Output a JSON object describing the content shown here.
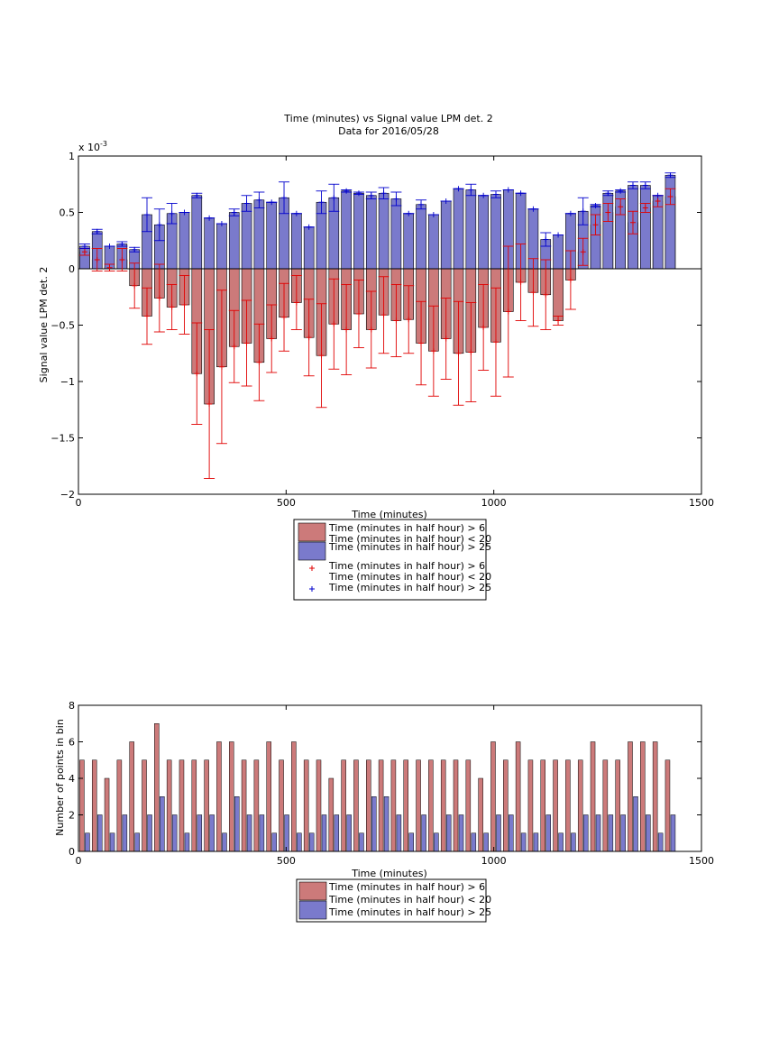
{
  "colors": {
    "red_fill": "#cc7a7a",
    "blue_fill": "#7a7acc",
    "red_err": "#e00000",
    "blue_err": "#0000cc",
    "edge": "#000000"
  },
  "chart_data": [
    {
      "type": "bar",
      "title": "Time (minutes) vs Signal value LPM det. 2",
      "subtitle": "Data for 2016/05/28",
      "xlabel": "Time (minutes)",
      "ylabel": "Signal value LPM det. 2",
      "exponent_label": "x 10",
      "exponent_power": "-3",
      "xlim": [
        0,
        1500
      ],
      "ylim": [
        -2,
        1
      ],
      "scale": 0.001,
      "xticks": [
        "0",
        "500",
        "1000",
        "1500"
      ],
      "yticks": [
        "1",
        "0.5",
        "0",
        "−0.5",
        "−1",
        "−1.5",
        "−2"
      ],
      "x": [
        15,
        45,
        75,
        105,
        135,
        165,
        195,
        225,
        255,
        285,
        315,
        345,
        375,
        405,
        435,
        465,
        495,
        525,
        555,
        585,
        615,
        645,
        675,
        705,
        735,
        765,
        795,
        825,
        855,
        885,
        915,
        945,
        975,
        1005,
        1035,
        1065,
        1095,
        1125,
        1155,
        1185,
        1215,
        1245,
        1275,
        1305,
        1335,
        1365,
        1395,
        1425
      ],
      "series": [
        {
          "name": "Time (minutes in half hour) > 6\nTime (minutes in half hour) < 20",
          "kind": "red",
          "values": [
            0.15,
            0.08,
            0.01,
            0.08,
            -0.15,
            -0.42,
            -0.26,
            -0.34,
            -0.32,
            -0.93,
            -1.2,
            -0.87,
            -0.69,
            -0.66,
            -0.83,
            -0.62,
            -0.43,
            -0.3,
            -0.61,
            -0.77,
            -0.49,
            -0.54,
            -0.4,
            -0.54,
            -0.41,
            -0.46,
            -0.45,
            -0.66,
            -0.73,
            -0.62,
            -0.75,
            -0.74,
            -0.52,
            -0.65,
            -0.38,
            -0.12,
            -0.21,
            -0.23,
            -0.46,
            -0.1,
            0.15,
            0.39,
            0.5,
            0.55,
            0.41,
            0.54,
            0.6,
            0.64
          ],
          "err": [
            0.03,
            0.1,
            0.03,
            0.1,
            0.2,
            0.25,
            0.3,
            0.2,
            0.26,
            0.45,
            0.66,
            0.68,
            0.32,
            0.38,
            0.34,
            0.3,
            0.3,
            0.24,
            0.34,
            0.46,
            0.4,
            0.4,
            0.3,
            0.34,
            0.34,
            0.32,
            0.3,
            0.37,
            0.4,
            0.36,
            0.46,
            0.44,
            0.38,
            0.48,
            0.58,
            0.34,
            0.3,
            0.31,
            0.04,
            0.26,
            0.12,
            0.09,
            0.08,
            0.07,
            0.1,
            0.04,
            0.05,
            0.07
          ]
        },
        {
          "name": "Time (minutes in half hour) > 25",
          "kind": "blue",
          "values": [
            0.2,
            0.33,
            0.2,
            0.22,
            0.17,
            0.48,
            0.39,
            0.49,
            0.5,
            0.65,
            0.45,
            0.4,
            0.5,
            0.58,
            0.61,
            0.59,
            0.63,
            0.49,
            0.37,
            0.59,
            0.63,
            0.69,
            0.67,
            0.65,
            0.67,
            0.62,
            0.49,
            0.57,
            0.48,
            0.6,
            0.71,
            0.7,
            0.65,
            0.66,
            0.7,
            0.67,
            0.53,
            0.26,
            0.3,
            0.49,
            0.51,
            0.56,
            0.67,
            0.69,
            0.74,
            0.74,
            0.65,
            0.83
          ],
          "err": [
            0.02,
            0.02,
            0.0,
            0.02,
            0.02,
            0.15,
            0.14,
            0.09,
            0.0,
            0.02,
            0.0,
            0.0,
            0.03,
            0.07,
            0.07,
            0.0,
            0.14,
            0.0,
            0.0,
            0.1,
            0.12,
            0.01,
            0.01,
            0.03,
            0.05,
            0.06,
            0.0,
            0.04,
            0.0,
            0.0,
            0.0,
            0.05,
            0.0,
            0.03,
            0.0,
            0.0,
            0.0,
            0.06,
            0.0,
            0.0,
            0.12,
            0.01,
            0.02,
            0.01,
            0.03,
            0.03,
            0.0,
            0.02
          ]
        }
      ],
      "legend": {
        "placement": "below",
        "entries": [
          {
            "line1": "Time (minutes in half hour) > 6",
            "line2": "Time (minutes in half hour) < 20",
            "marker": "bar",
            "kind": "red"
          },
          {
            "line1": "Time (minutes in half hour) > 25",
            "line2": "",
            "marker": "bar",
            "kind": "blue"
          },
          {
            "line1": "Time (minutes in half hour) > 6",
            "line2": "Time (minutes in half hour) < 20",
            "marker": "+",
            "kind": "red"
          },
          {
            "line1": "Time (minutes in half hour) > 25",
            "line2": "",
            "marker": "+",
            "kind": "blue"
          }
        ]
      }
    },
    {
      "type": "bar",
      "title": "",
      "xlabel": "Time (minutes)",
      "ylabel": "Number of points in bin",
      "xlim": [
        0,
        1500
      ],
      "ylim": [
        0,
        8
      ],
      "xticks": [
        "0",
        "500",
        "1000",
        "1500"
      ],
      "yticks": [
        "8",
        "6",
        "4",
        "2",
        "0"
      ],
      "x": [
        15,
        45,
        75,
        105,
        135,
        165,
        195,
        225,
        255,
        285,
        315,
        345,
        375,
        405,
        435,
        465,
        495,
        525,
        555,
        585,
        615,
        645,
        675,
        705,
        735,
        765,
        795,
        825,
        855,
        885,
        915,
        945,
        975,
        1005,
        1035,
        1065,
        1095,
        1125,
        1155,
        1185,
        1215,
        1245,
        1275,
        1305,
        1335,
        1365,
        1395,
        1425
      ],
      "series": [
        {
          "name": "Time (minutes in half hour) > 6\nTime (minutes in half hour) < 20",
          "kind": "red",
          "values": [
            5,
            5,
            4,
            5,
            6,
            5,
            7,
            5,
            5,
            5,
            5,
            6,
            6,
            5,
            5,
            6,
            5,
            6,
            5,
            5,
            4,
            5,
            5,
            5,
            5,
            5,
            5,
            5,
            5,
            5,
            5,
            5,
            4,
            6,
            5,
            6,
            5,
            5,
            5,
            5,
            5,
            6,
            5,
            5,
            6,
            6,
            6,
            5
          ]
        },
        {
          "name": "Time (minutes in half hour) > 25",
          "kind": "blue",
          "values": [
            1,
            2,
            1,
            2,
            1,
            2,
            3,
            2,
            1,
            2,
            2,
            1,
            3,
            2,
            2,
            1,
            2,
            1,
            1,
            2,
            2,
            2,
            1,
            3,
            3,
            2,
            1,
            2,
            1,
            2,
            2,
            1,
            1,
            2,
            2,
            1,
            1,
            2,
            1,
            1,
            2,
            2,
            2,
            2,
            3,
            2,
            1,
            2
          ]
        }
      ],
      "legend": {
        "placement": "below",
        "entries": [
          {
            "line1": "Time (minutes in half hour) > 6",
            "line2": "",
            "marker": "bar",
            "kind": "red"
          },
          {
            "line1": "Time (minutes in half hour) < 20",
            "line2": "",
            "marker": "none",
            "kind": "red"
          },
          {
            "line1": "Time (minutes in half hour) > 25",
            "line2": "",
            "marker": "bar",
            "kind": "blue"
          }
        ]
      }
    }
  ]
}
